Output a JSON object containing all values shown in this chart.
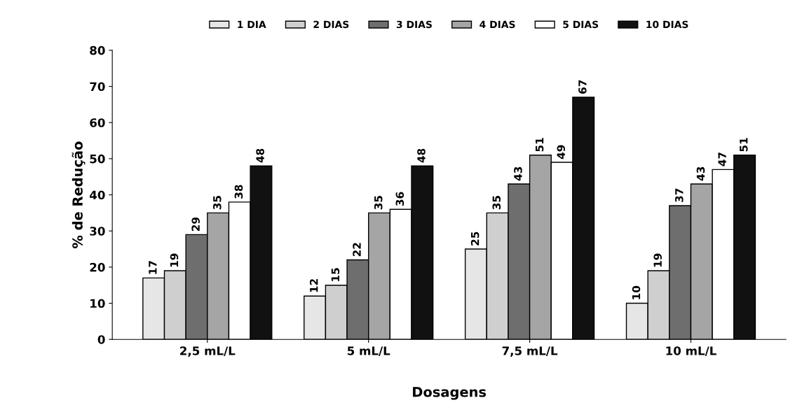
{
  "chart_data": {
    "type": "bar",
    "xlabel": "Dosagens",
    "ylabel": "% de Redução",
    "categories": [
      "2,5 mL/L",
      "5 mL/L",
      "7,5 mL/L",
      "10 mL/L"
    ],
    "series": [
      {
        "name": "1 DIA",
        "color": "#e6e6e6",
        "values": [
          17,
          12,
          25,
          10
        ]
      },
      {
        "name": "2 DIAS",
        "color": "#cfcfcf",
        "values": [
          19,
          15,
          35,
          19
        ]
      },
      {
        "name": "3 DIAS",
        "color": "#6e6e6e",
        "values": [
          29,
          22,
          43,
          37
        ]
      },
      {
        "name": "4 DIAS",
        "color": "#a5a5a5",
        "values": [
          35,
          35,
          51,
          43
        ]
      },
      {
        "name": "5 DIAS",
        "color": "#ffffff",
        "values": [
          38,
          36,
          49,
          47
        ]
      },
      {
        "name": "10 DIAS",
        "color": "#111111",
        "values": [
          48,
          48,
          67,
          51
        ]
      }
    ],
    "ylim": [
      0,
      80
    ],
    "yticks": [
      0,
      10,
      20,
      30,
      40,
      50,
      60,
      70,
      80
    ],
    "data_labels": true,
    "legend": "top",
    "grid": false
  }
}
